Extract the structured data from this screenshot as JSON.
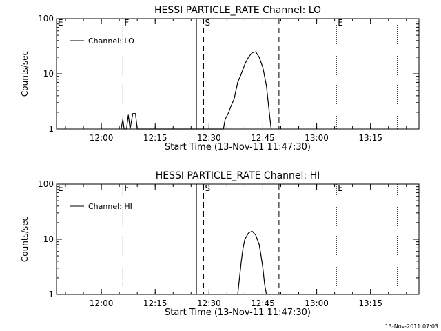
{
  "footer_timestamp": "13-Nov-2011 07:03",
  "chart_data": [
    {
      "type": "line",
      "title": "HESSI PARTICLE_RATE Channel: LO",
      "xlabel": "Start Time (13-Nov-11 11:47:30)",
      "ylabel": "Counts/sec",
      "yscale": "log",
      "ylim": [
        1,
        100
      ],
      "xlim": [
        "11:47:30",
        "13:28:30"
      ],
      "xticks": [
        "12:00",
        "12:15",
        "12:30",
        "12:45",
        "13:00",
        "13:15"
      ],
      "yticks": [
        "1",
        "10",
        "100"
      ],
      "legend": {
        "label": "Channel: LO",
        "placement": "top-left"
      },
      "markers": [
        {
          "label": "E",
          "time": "11:47:30",
          "style": "solid"
        },
        {
          "label": "F",
          "time": "12:06:00",
          "style": "dotted"
        },
        {
          "label": "",
          "time": "12:26:30",
          "style": "solid"
        },
        {
          "label": "S",
          "time": "12:28:30",
          "style": "dashed"
        },
        {
          "label": "",
          "time": "12:49:30",
          "style": "dashed"
        },
        {
          "label": "E",
          "time": "13:05:30",
          "style": "dotted"
        },
        {
          "label": "",
          "time": "13:22:30",
          "style": "dotted"
        }
      ],
      "series": [
        {
          "values": [
            [
              "12:05:30",
              1
            ],
            [
              "12:06:00",
              1.5
            ],
            [
              "12:06:20",
              1
            ],
            [
              "12:07:00",
              1
            ],
            [
              "12:07:30",
              1.8
            ],
            [
              "12:08:00",
              1
            ],
            [
              "12:08:45",
              1.9
            ],
            [
              "12:09:30",
              1.9
            ],
            [
              "12:10:00",
              1
            ],
            [
              "12:34:00",
              1
            ],
            [
              "12:34:30",
              1.5
            ],
            [
              "12:35:30",
              2
            ],
            [
              "12:36:00",
              2.5
            ],
            [
              "12:37:00",
              3.5
            ],
            [
              "12:37:30",
              5
            ],
            [
              "12:38:00",
              7
            ],
            [
              "12:39:00",
              10
            ],
            [
              "12:40:00",
              15
            ],
            [
              "12:41:00",
              20
            ],
            [
              "12:42:00",
              24
            ],
            [
              "12:43:00",
              25
            ],
            [
              "12:44:00",
              20
            ],
            [
              "12:45:00",
              13
            ],
            [
              "12:46:00",
              6
            ],
            [
              "12:46:30",
              3
            ],
            [
              "12:47:00",
              1.5
            ],
            [
              "12:47:20",
              1
            ]
          ]
        }
      ]
    },
    {
      "type": "line",
      "title": "HESSI PARTICLE_RATE Channel: HI",
      "xlabel": "Start Time (13-Nov-11 11:47:30)",
      "ylabel": "Counts/sec",
      "yscale": "log",
      "ylim": [
        1,
        100
      ],
      "xlim": [
        "11:47:30",
        "13:28:30"
      ],
      "xticks": [
        "12:00",
        "12:15",
        "12:30",
        "12:45",
        "13:00",
        "13:15"
      ],
      "yticks": [
        "1",
        "10",
        "100"
      ],
      "legend": {
        "label": "Channel: HI",
        "placement": "top-left"
      },
      "markers": [
        {
          "label": "E",
          "time": "11:47:30",
          "style": "solid"
        },
        {
          "label": "F",
          "time": "12:06:00",
          "style": "dotted"
        },
        {
          "label": "",
          "time": "12:26:30",
          "style": "solid"
        },
        {
          "label": "S",
          "time": "12:28:30",
          "style": "dashed"
        },
        {
          "label": "",
          "time": "12:49:30",
          "style": "dashed"
        },
        {
          "label": "E",
          "time": "13:05:30",
          "style": "dotted"
        },
        {
          "label": "",
          "time": "13:22:30",
          "style": "dotted"
        }
      ],
      "series": [
        {
          "values": [
            [
              "12:38:00",
              1
            ],
            [
              "12:38:30",
              2
            ],
            [
              "12:39:00",
              4
            ],
            [
              "12:39:30",
              7
            ],
            [
              "12:40:00",
              10
            ],
            [
              "12:41:00",
              13
            ],
            [
              "12:42:00",
              14
            ],
            [
              "12:43:00",
              12
            ],
            [
              "12:44:00",
              8
            ],
            [
              "12:44:30",
              5
            ],
            [
              "12:45:00",
              3
            ],
            [
              "12:45:30",
              1.5
            ],
            [
              "12:46:00",
              1
            ]
          ]
        }
      ]
    }
  ]
}
